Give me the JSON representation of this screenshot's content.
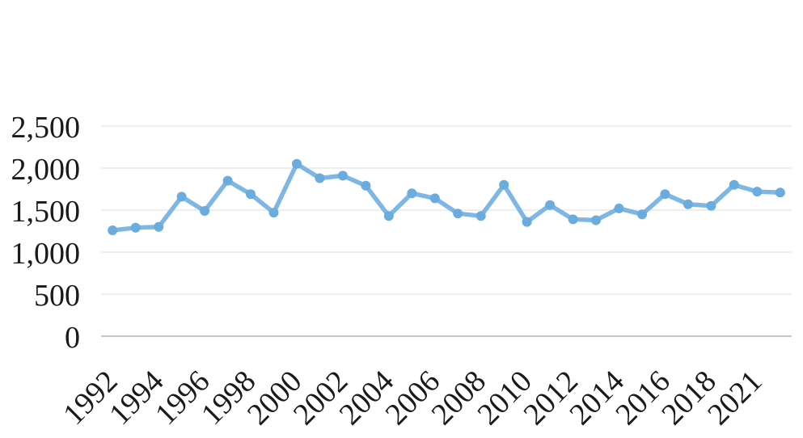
{
  "chart_data": {
    "type": "line",
    "title": "",
    "xlabel": "",
    "ylabel": "",
    "x": [
      "1992",
      "1993",
      "1994",
      "1995",
      "1996",
      "1997",
      "1998",
      "1999",
      "2000",
      "2001",
      "2002",
      "2003",
      "2004",
      "2005",
      "2006",
      "2007",
      "2008",
      "2009",
      "2010",
      "2011",
      "2012",
      "2013",
      "2014",
      "2015",
      "2016",
      "2017",
      "2018",
      "2019",
      "2021",
      "2022"
    ],
    "values": [
      1260,
      1290,
      1300,
      1660,
      1490,
      1850,
      1690,
      1470,
      2050,
      1880,
      1910,
      1790,
      1430,
      1700,
      1640,
      1460,
      1430,
      1800,
      1360,
      1560,
      1390,
      1380,
      1520,
      1450,
      1690,
      1570,
      1550,
      1800,
      1720,
      1710
    ],
    "x_tick_labels": [
      "1992",
      "1994",
      "1996",
      "1998",
      "2000",
      "2002",
      "2004",
      "2006",
      "2008",
      "2010",
      "2012",
      "2014",
      "2016",
      "2018",
      "2021"
    ],
    "x_tick_label_interval": 2,
    "y_ticks": [
      0,
      500,
      1000,
      1500,
      2000,
      2500
    ],
    "y_tick_labels": [
      "0",
      "500",
      "1,000",
      "1,500",
      "2,000",
      "2,500"
    ],
    "ylim": [
      0,
      2500
    ],
    "grid": "horizontal",
    "legend": "none",
    "marker": "circle",
    "x_label_rotation_deg": 45
  },
  "colors": {
    "line": "#7EB6E4",
    "marker": "#69ACDD",
    "gridline": "#DEDEDE",
    "axis_line": "#C4C4C4",
    "text": "#1A1A1A",
    "background": "#FFFFFF"
  }
}
